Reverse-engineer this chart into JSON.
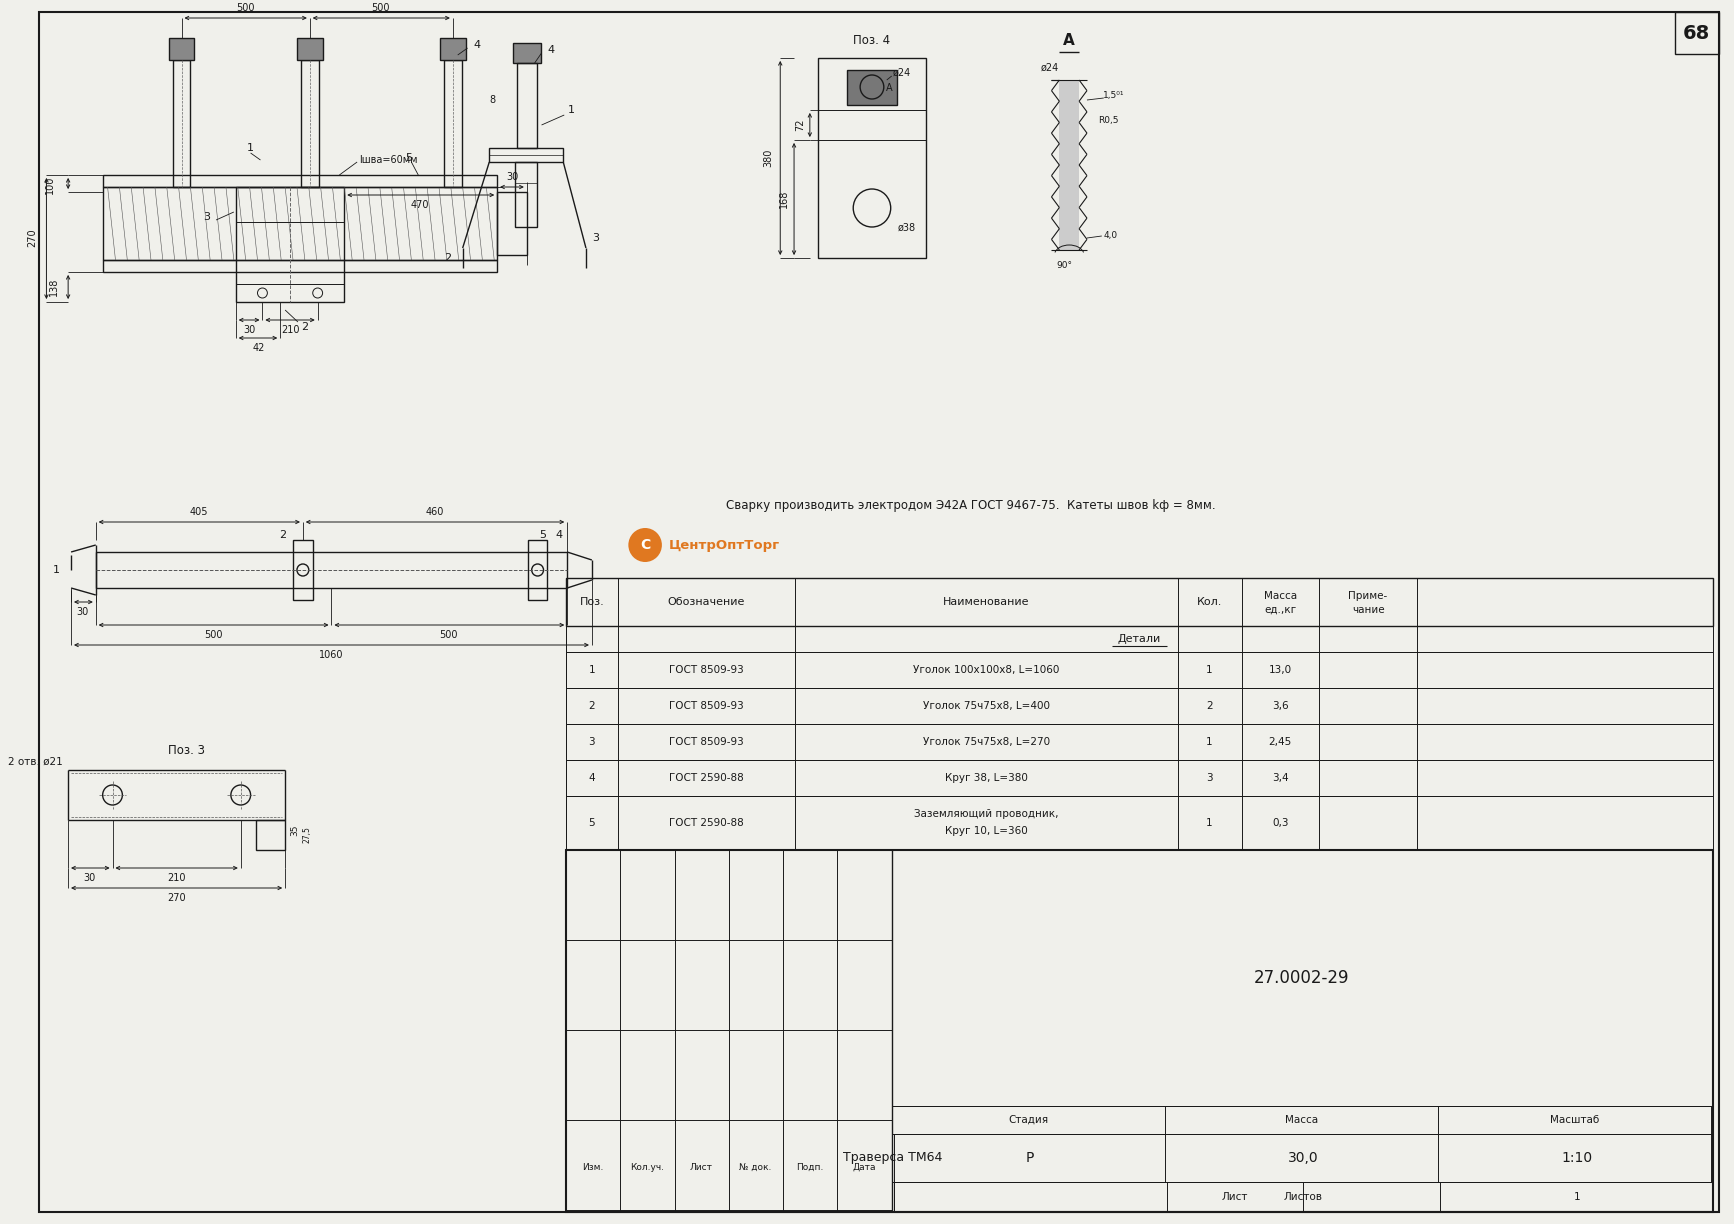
{
  "page_number": "68",
  "background_color": "#f0f0eb",
  "line_color": "#1a1a1a",
  "table": {
    "rows": [
      [
        "1",
        "ГОСТ 8509-93",
        "Уголок 100х100х8, L=1060",
        "1",
        "13,0",
        ""
      ],
      [
        "2",
        "ГОСТ 8509-93",
        "Уголок 75ч75х8, L=400",
        "2",
        "3,6",
        ""
      ],
      [
        "3",
        "ГОСТ 8509-93",
        "Уголок 75ч75х8, L=270",
        "1",
        "2,45",
        ""
      ],
      [
        "4",
        "ГОСТ 2590-88",
        "Круг 38, L=380",
        "3",
        "3,4",
        ""
      ],
      [
        "5",
        "ГОСТ 2590-88",
        "Заземляющий проводник,\nКруг 10, L=360",
        "1",
        "0,3",
        ""
      ]
    ],
    "doc_number": "27.0002-29",
    "product_name": "Траверса ТМ64",
    "stage_val": "Р",
    "mass_val": "30,0",
    "scale_val": "1:10",
    "sheets_val": "1",
    "revision_cols": [
      "Изм.",
      "Кол.уч.",
      "Лист",
      "№ док.",
      "Подп.",
      "Дата"
    ]
  },
  "weld_note": "Сварку производить электродом Э42А ГОСТ 9467-75.  Катеты швов kф = 8мм.",
  "logo_text": "ЦентрОптТорг",
  "pos3_label": "Поз. 3",
  "pos4_label": "Поз. 4",
  "view_a_label": "А"
}
